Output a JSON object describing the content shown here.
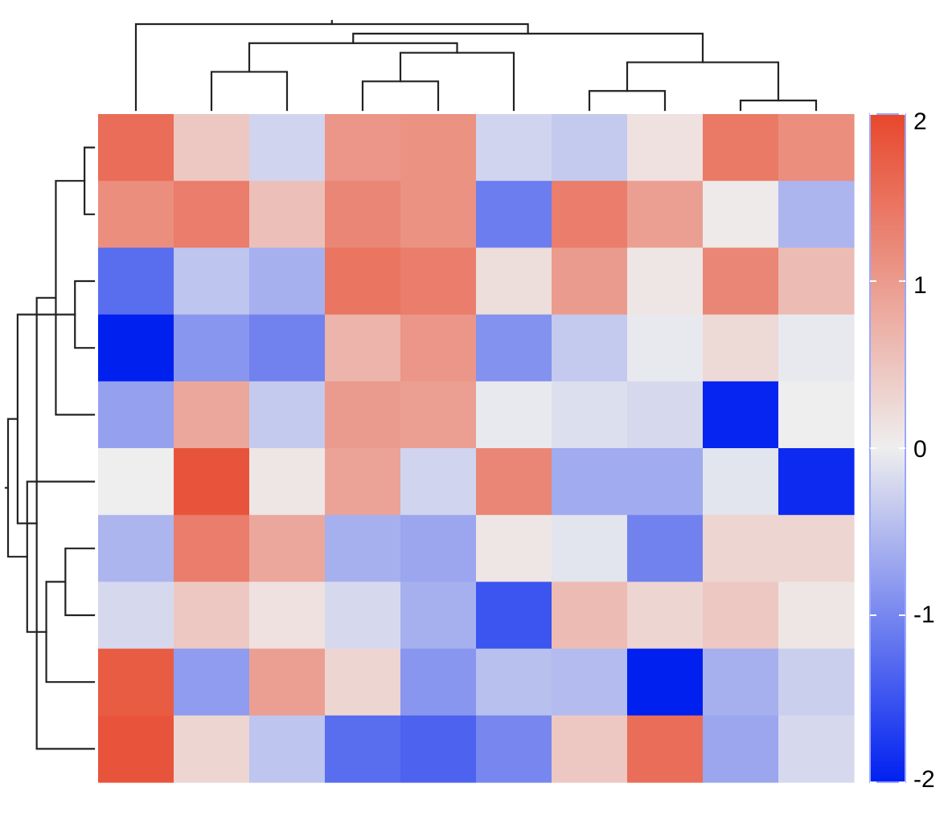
{
  "chart_data": {
    "type": "heatmap",
    "title": "",
    "xlabel": "",
    "ylabel": "",
    "values": [
      [
        1.55,
        0.45,
        -0.25,
        1.05,
        1.1,
        -0.25,
        -0.35,
        0.15,
        1.4,
        1.15
      ],
      [
        1.15,
        1.35,
        0.55,
        1.25,
        1.1,
        -1.1,
        1.35,
        0.95,
        0.05,
        -0.55
      ],
      [
        -1.25,
        -0.4,
        -0.6,
        1.45,
        1.35,
        0.2,
        1.0,
        0.1,
        1.25,
        0.6
      ],
      [
        -2.0,
        -0.85,
        -1.05,
        0.7,
        1.05,
        -0.9,
        -0.35,
        -0.05,
        0.25,
        -0.05
      ],
      [
        -0.75,
        0.85,
        -0.35,
        1.0,
        0.95,
        -0.05,
        -0.15,
        -0.2,
        -1.95,
        0.0
      ],
      [
        0.0,
        1.85,
        0.1,
        0.9,
        -0.25,
        1.25,
        -0.65,
        -0.65,
        -0.1,
        -1.9
      ],
      [
        -0.55,
        1.35,
        0.85,
        -0.6,
        -0.7,
        0.1,
        -0.1,
        -1.05,
        0.3,
        0.3
      ],
      [
        -0.2,
        0.45,
        0.15,
        -0.2,
        -0.6,
        -1.5,
        0.6,
        0.3,
        0.45,
        0.1
      ],
      [
        1.75,
        -0.8,
        0.95,
        0.3,
        -0.85,
        -0.45,
        -0.5,
        -2.0,
        -0.6,
        -0.3
      ],
      [
        1.85,
        0.3,
        -0.4,
        -1.25,
        -1.35,
        -1.0,
        0.45,
        1.55,
        -0.7,
        -0.2
      ]
    ],
    "color_scale": {
      "min": -2,
      "max": 2,
      "low_color": "#0020f0",
      "mid_color": "#eeeeee",
      "high_color": "#e8472c"
    },
    "colorbar_ticks": [
      2,
      1,
      0,
      -1,
      -2
    ],
    "colorbar_tick_labels": [
      "2",
      "1",
      "0",
      "-1",
      "-2"
    ],
    "column_dendrogram": [
      [
        8,
        9
      ],
      [
        6,
        7
      ],
      [
        3,
        4
      ],
      [
        1,
        2
      ],
      [
        10,
        11
      ],
      [
        12,
        5
      ],
      [
        13,
        15
      ],
      [
        16,
        14
      ],
      [
        0,
        17
      ]
    ],
    "row_dendrogram": [
      [
        0,
        1
      ],
      [
        2,
        3
      ],
      [
        6,
        7
      ],
      [
        10,
        4
      ],
      [
        12,
        8
      ],
      [
        13,
        9
      ],
      [
        5,
        14
      ],
      [
        11,
        15
      ],
      [
        16,
        17
      ]
    ],
    "colorbar_frame_color": "#9aa8ff"
  }
}
